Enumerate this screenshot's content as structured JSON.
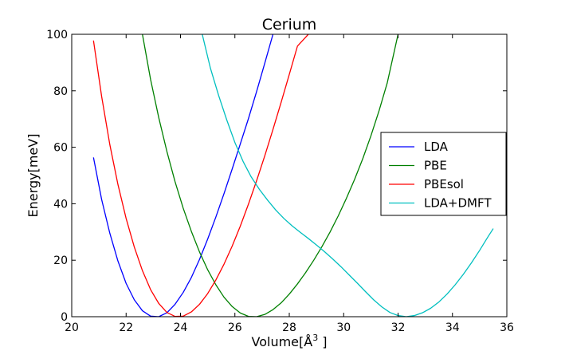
{
  "chart_data": {
    "type": "line",
    "title": "Cerium",
    "xlabel": "Volume[Å",
    "xlabel_superscript": "3",
    "xlabel_suffix": "]",
    "ylabel": "Energy[meV]",
    "xlim": [
      20,
      36
    ],
    "ylim": [
      0,
      100
    ],
    "x_ticks": [
      20,
      22,
      24,
      26,
      28,
      30,
      32,
      34,
      36
    ],
    "y_ticks": [
      0,
      20,
      40,
      60,
      80,
      100
    ],
    "grid": false,
    "legend_position": "center-right",
    "series": [
      {
        "name": "LDA",
        "color": "#0000ff",
        "x": [
          20.8,
          21.1,
          21.4,
          21.7,
          22.0,
          22.3,
          22.6,
          22.9,
          23.2,
          23.5,
          23.8,
          24.1,
          24.4,
          24.7,
          25.0,
          25.3,
          25.6,
          25.9,
          26.2,
          26.5,
          26.8,
          27.1,
          27.4
        ],
        "y": [
          56.4,
          41.5,
          29.6,
          19.7,
          11.8,
          6.0,
          2.1,
          0.2,
          0.0,
          1.4,
          4.4,
          8.6,
          13.9,
          20.3,
          27.5,
          35.3,
          43.6,
          52.3,
          61.2,
          70.2,
          79.8,
          89.8,
          100.0
        ]
      },
      {
        "name": "PBE",
        "color": "#008000",
        "x": [
          22.6,
          22.9,
          23.2,
          23.5,
          23.8,
          24.1,
          24.4,
          24.7,
          25.0,
          25.3,
          25.6,
          25.9,
          26.2,
          26.5,
          26.8,
          27.1,
          27.4,
          27.7,
          28.0,
          28.3,
          28.6,
          28.9,
          29.2,
          29.5,
          29.8,
          30.1,
          30.4,
          30.7,
          31.0,
          31.3,
          31.6,
          32.0
        ],
        "y": [
          100.0,
          84.0,
          70.5,
          58.5,
          47.8,
          38.4,
          30.2,
          22.9,
          16.6,
          11.3,
          6.9,
          3.6,
          1.3,
          0.1,
          0.0,
          0.8,
          2.5,
          4.9,
          8.0,
          11.6,
          15.6,
          20.0,
          24.8,
          30.0,
          35.7,
          41.9,
          48.6,
          55.9,
          64.0,
          72.9,
          82.7,
          100.0
        ]
      },
      {
        "name": "PBEsol",
        "color": "#ff0000",
        "x": [
          20.8,
          21.1,
          21.4,
          21.7,
          22.0,
          22.3,
          22.6,
          22.9,
          23.2,
          23.5,
          23.8,
          24.1,
          24.4,
          24.7,
          25.0,
          25.3,
          25.6,
          25.9,
          26.2,
          26.5,
          26.8,
          27.1,
          27.4,
          27.7,
          28.0,
          28.3,
          28.7
        ],
        "y": [
          97.8,
          78.0,
          61.0,
          46.8,
          34.8,
          24.7,
          16.3,
          9.6,
          4.7,
          1.5,
          0.1,
          0.2,
          1.7,
          4.4,
          8.2,
          13.0,
          18.6,
          25.0,
          32.1,
          39.9,
          48.2,
          57.0,
          66.3,
          75.9,
          85.8,
          95.8,
          100.0
        ]
      },
      {
        "name": "LDA+DMFT",
        "color": "#00bfbf",
        "x": [
          24.8,
          25.1,
          25.4,
          25.7,
          26.0,
          26.3,
          26.6,
          26.9,
          27.2,
          27.5,
          27.8,
          28.1,
          28.4,
          28.7,
          29.0,
          29.3,
          29.6,
          29.9,
          30.2,
          30.5,
          30.8,
          31.1,
          31.4,
          31.7,
          32.0,
          32.3,
          32.6,
          32.9,
          33.2,
          33.5,
          33.8,
          34.1,
          34.4,
          34.7,
          35.0,
          35.3,
          35.5
        ],
        "y": [
          100.0,
          88.0,
          78.4,
          69.7,
          61.7,
          55.0,
          49.5,
          45.1,
          41.3,
          37.8,
          34.8,
          32.2,
          29.9,
          27.7,
          25.4,
          23.0,
          20.4,
          17.7,
          14.8,
          11.9,
          8.9,
          6.0,
          3.5,
          1.5,
          0.4,
          0.0,
          0.4,
          1.4,
          3.0,
          5.2,
          8.0,
          11.3,
          15.0,
          19.1,
          23.5,
          28.2,
          31.2
        ]
      }
    ]
  }
}
